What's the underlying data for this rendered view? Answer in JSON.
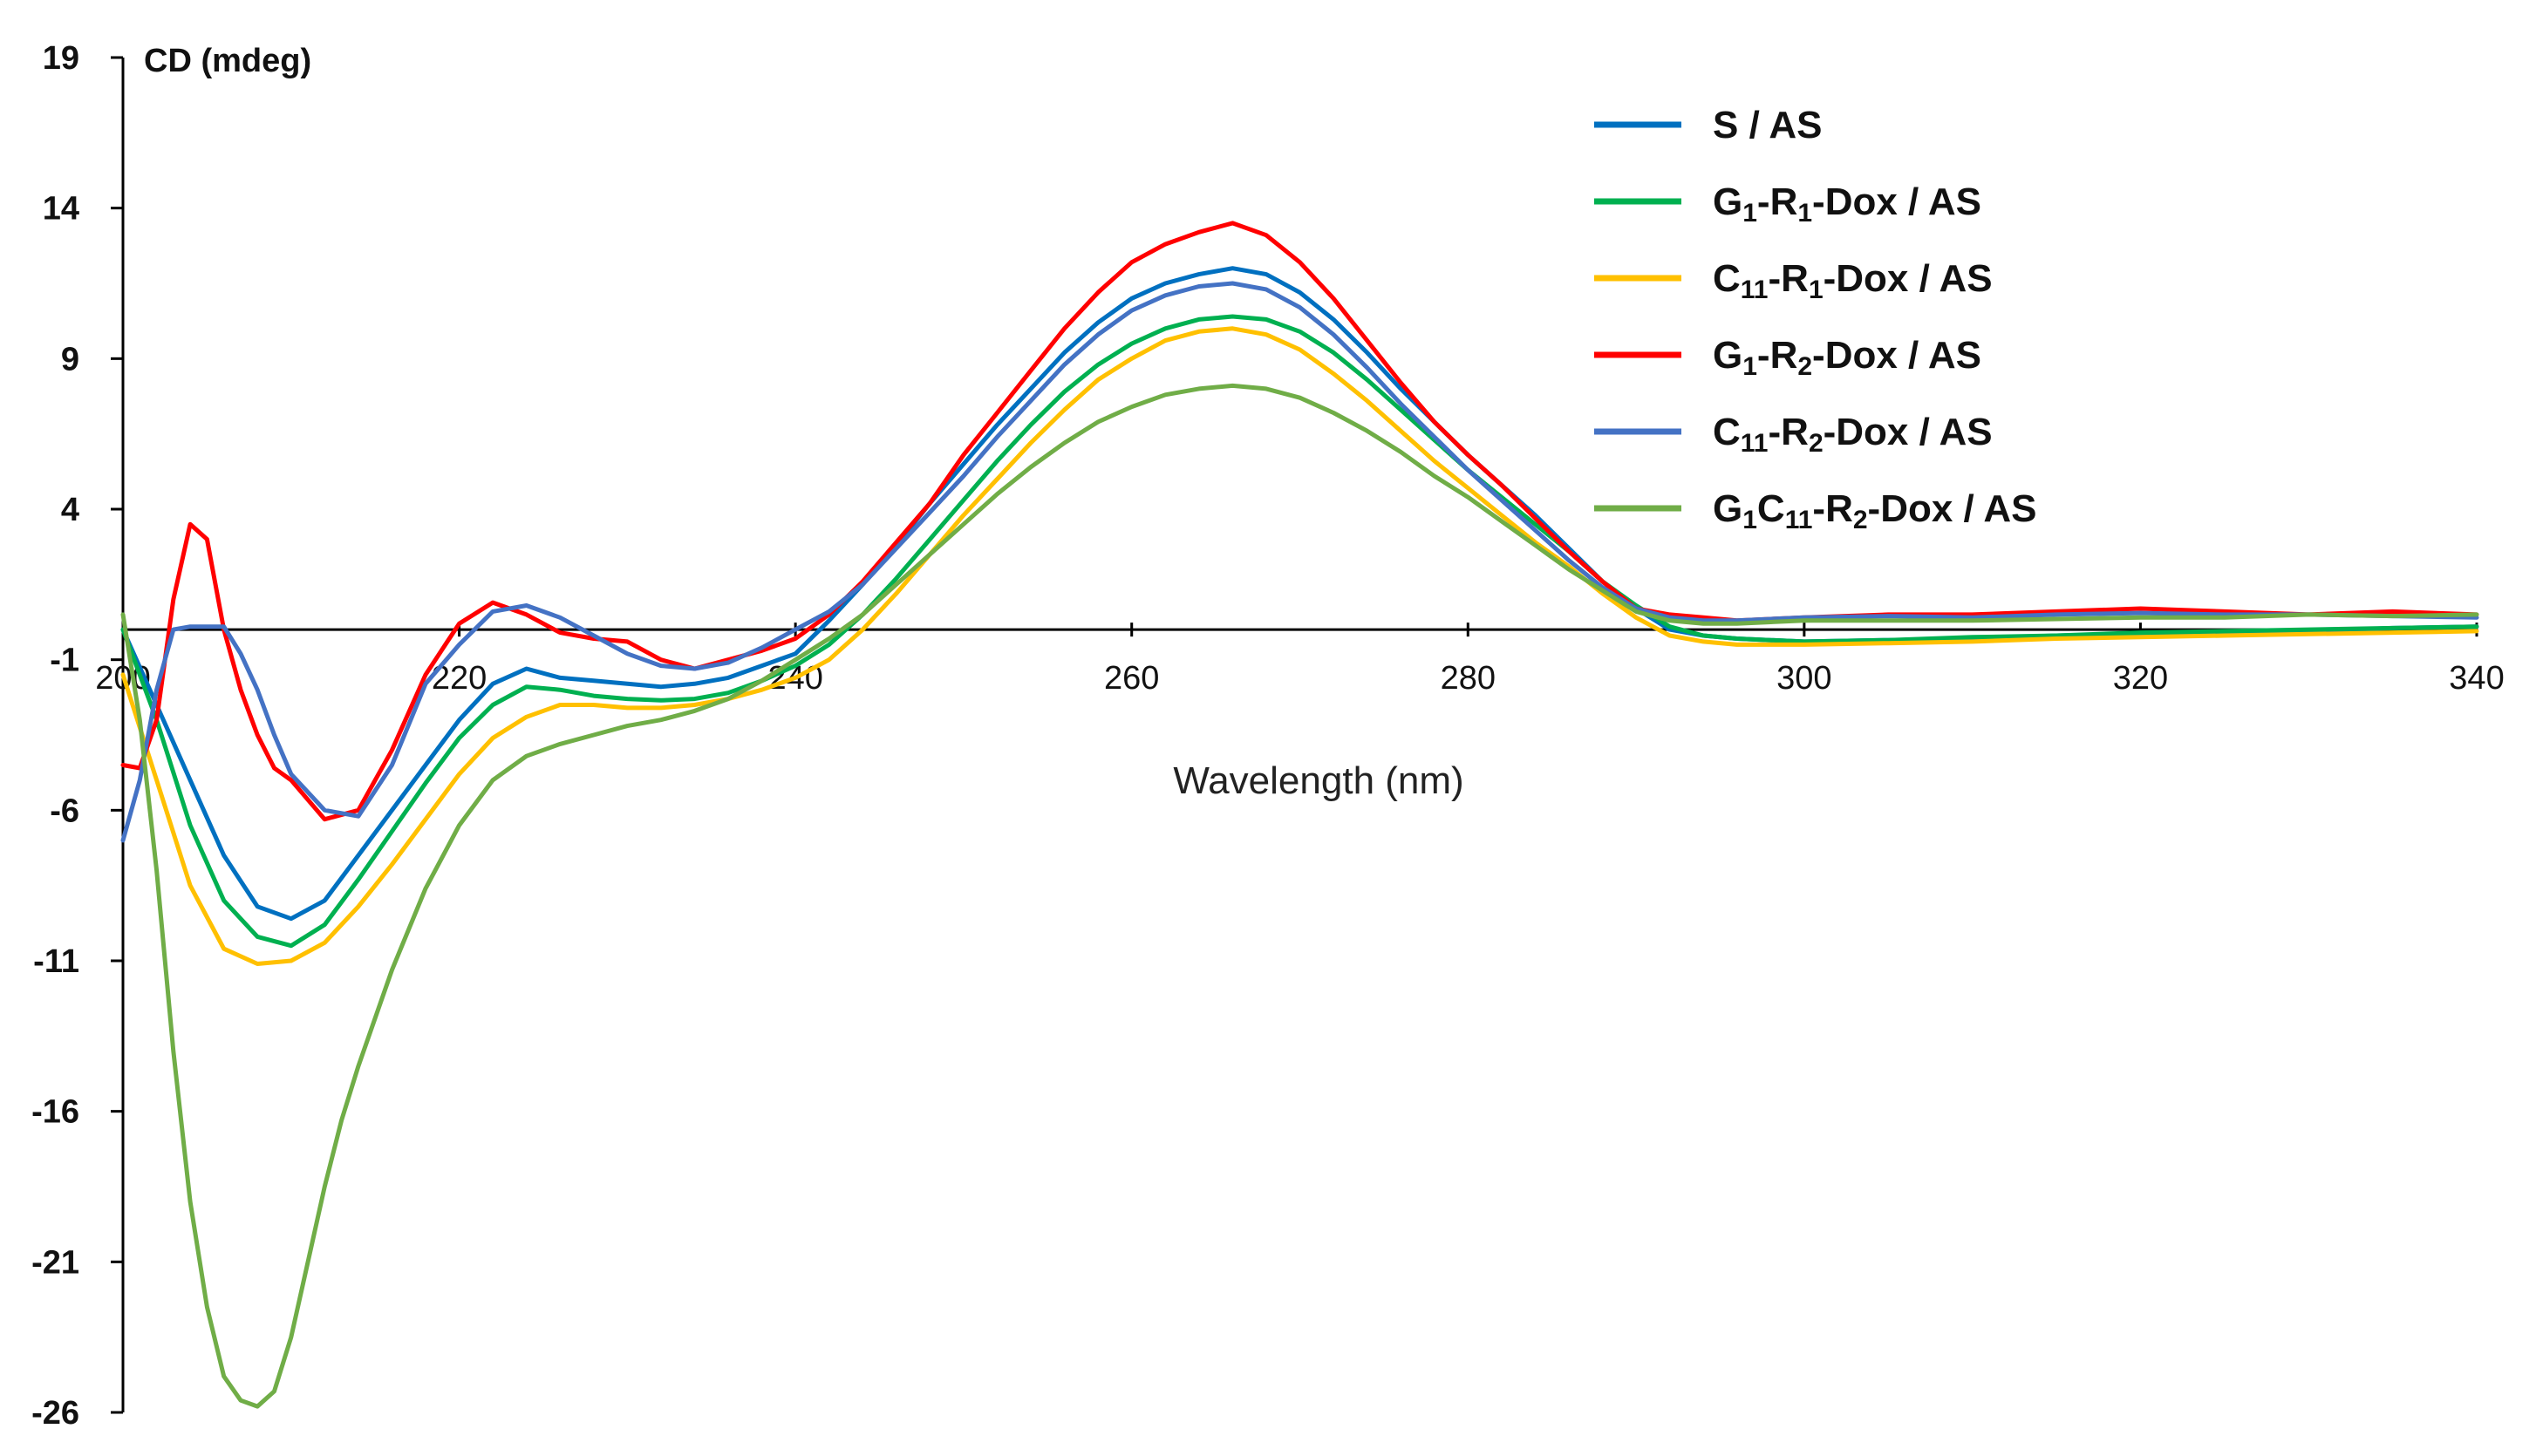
{
  "chart_data": {
    "type": "line",
    "title": "",
    "xlabel": "Wavelength (nm)",
    "ylabel": "CD (mdeg)",
    "xlim": [
      200,
      340
    ],
    "ylim": [
      -26,
      19
    ],
    "x_ticks": [
      200,
      220,
      240,
      260,
      280,
      300,
      320,
      340
    ],
    "y_ticks": [
      19,
      14,
      9,
      4,
      -1,
      -6,
      -11,
      -16,
      -21,
      -26
    ],
    "legend_position": "top-right",
    "series": [
      {
        "name": "S / AS",
        "legend_parts": [
          {
            "t": "S / AS"
          }
        ],
        "color": "#0070C0",
        "x": [
          200,
          202,
          204,
          206,
          208,
          210,
          212,
          214,
          216,
          218,
          220,
          222,
          224,
          226,
          228,
          230,
          232,
          234,
          236,
          238,
          240,
          242,
          244,
          246,
          248,
          250,
          252,
          254,
          256,
          258,
          260,
          262,
          264,
          266,
          268,
          270,
          272,
          274,
          276,
          278,
          280,
          282,
          284,
          286,
          288,
          290,
          292,
          294,
          296,
          298,
          300,
          305,
          310,
          315,
          320,
          325,
          330,
          335,
          340
        ],
        "y": [
          0,
          -2.5,
          -5,
          -7.5,
          -9.2,
          -9.6,
          -9,
          -7.5,
          -6,
          -4.5,
          -3,
          -1.8,
          -1.3,
          -1.6,
          -1.7,
          -1.8,
          -1.9,
          -1.8,
          -1.6,
          -1.2,
          -0.8,
          0.3,
          1.5,
          2.8,
          4.2,
          5.5,
          6.8,
          8,
          9.2,
          10.2,
          11,
          11.5,
          11.8,
          12,
          11.8,
          11.2,
          10.3,
          9.2,
          8,
          6.9,
          5.8,
          4.8,
          3.8,
          2.7,
          1.6,
          0.7,
          0,
          -0.2,
          -0.3,
          -0.35,
          -0.4,
          -0.35,
          -0.3,
          -0.2,
          -0.15,
          -0.1,
          -0.05,
          0.05,
          0.1
        ]
      },
      {
        "name": "G1-R1-Dox / AS",
        "legend_parts": [
          {
            "t": "G"
          },
          {
            "t": "1",
            "sub": true
          },
          {
            "t": "-R"
          },
          {
            "t": "1",
            "sub": true
          },
          {
            "t": "-Dox / AS"
          }
        ],
        "color": "#00B050",
        "x": [
          200,
          202,
          204,
          206,
          208,
          210,
          212,
          214,
          216,
          218,
          220,
          222,
          224,
          226,
          228,
          230,
          232,
          234,
          236,
          238,
          240,
          242,
          244,
          246,
          248,
          250,
          252,
          254,
          256,
          258,
          260,
          262,
          264,
          266,
          268,
          270,
          272,
          274,
          276,
          278,
          280,
          282,
          284,
          286,
          288,
          290,
          292,
          294,
          296,
          298,
          300,
          305,
          310,
          315,
          320,
          325,
          330,
          335,
          340
        ],
        "y": [
          0,
          -3,
          -6.5,
          -9,
          -10.2,
          -10.5,
          -9.8,
          -8.3,
          -6.7,
          -5.1,
          -3.6,
          -2.5,
          -1.9,
          -2,
          -2.2,
          -2.3,
          -2.35,
          -2.3,
          -2.1,
          -1.7,
          -1.2,
          -0.5,
          0.5,
          1.7,
          3,
          4.3,
          5.6,
          6.8,
          7.9,
          8.8,
          9.5,
          10,
          10.3,
          10.4,
          10.3,
          9.9,
          9.2,
          8.3,
          7.3,
          6.3,
          5.3,
          4.4,
          3.5,
          2.6,
          1.6,
          0.8,
          0.1,
          -0.2,
          -0.3,
          -0.35,
          -0.4,
          -0.35,
          -0.25,
          -0.2,
          -0.1,
          -0.05,
          0,
          0.05,
          0.1
        ]
      },
      {
        "name": "C11-R1-Dox / AS",
        "legend_parts": [
          {
            "t": "C"
          },
          {
            "t": "11",
            "sub": true
          },
          {
            "t": "-R"
          },
          {
            "t": "1",
            "sub": true
          },
          {
            "t": "-Dox / AS"
          }
        ],
        "color": "#FFC000",
        "x": [
          200,
          202,
          204,
          206,
          208,
          210,
          212,
          214,
          216,
          218,
          220,
          222,
          224,
          226,
          228,
          230,
          232,
          234,
          236,
          238,
          240,
          242,
          244,
          246,
          248,
          250,
          252,
          254,
          256,
          258,
          260,
          262,
          264,
          266,
          268,
          270,
          272,
          274,
          276,
          278,
          280,
          282,
          284,
          286,
          288,
          290,
          292,
          294,
          296,
          298,
          300,
          305,
          310,
          315,
          320,
          325,
          330,
          335,
          340
        ],
        "y": [
          -1.5,
          -5,
          -8.5,
          -10.6,
          -11.1,
          -11,
          -10.4,
          -9.2,
          -7.8,
          -6.3,
          -4.8,
          -3.6,
          -2.9,
          -2.5,
          -2.5,
          -2.6,
          -2.6,
          -2.5,
          -2.3,
          -2,
          -1.6,
          -1,
          0,
          1.2,
          2.5,
          3.8,
          5,
          6.2,
          7.3,
          8.3,
          9,
          9.6,
          9.9,
          10,
          9.8,
          9.3,
          8.5,
          7.6,
          6.6,
          5.6,
          4.7,
          3.8,
          2.9,
          2.1,
          1.2,
          0.4,
          -0.2,
          -0.4,
          -0.5,
          -0.5,
          -0.5,
          -0.45,
          -0.4,
          -0.3,
          -0.25,
          -0.2,
          -0.15,
          -0.1,
          -0.05
        ]
      },
      {
        "name": "G1-R2-Dox / AS",
        "legend_parts": [
          {
            "t": "G"
          },
          {
            "t": "1",
            "sub": true
          },
          {
            "t": "-R"
          },
          {
            "t": "2",
            "sub": true
          },
          {
            "t": "-Dox / AS"
          }
        ],
        "color": "#FF0000",
        "x": [
          200,
          201,
          202,
          203,
          204,
          205,
          206,
          207,
          208,
          209,
          210,
          212,
          214,
          216,
          218,
          220,
          222,
          224,
          226,
          228,
          230,
          232,
          234,
          236,
          238,
          240,
          242,
          244,
          246,
          248,
          250,
          252,
          254,
          256,
          258,
          260,
          262,
          264,
          266,
          268,
          270,
          272,
          274,
          276,
          278,
          280,
          282,
          284,
          286,
          288,
          290,
          292,
          294,
          296,
          298,
          300,
          305,
          310,
          315,
          320,
          325,
          330,
          335,
          340
        ],
        "y": [
          -4.5,
          -4.6,
          -3,
          1,
          3.5,
          3,
          0,
          -2,
          -3.5,
          -4.6,
          -5,
          -6.3,
          -6,
          -4,
          -1.5,
          0.2,
          0.9,
          0.5,
          -0.1,
          -0.3,
          -0.4,
          -1,
          -1.3,
          -1,
          -0.7,
          -0.3,
          0.5,
          1.6,
          2.9,
          4.2,
          5.8,
          7.2,
          8.6,
          10,
          11.2,
          12.2,
          12.8,
          13.2,
          13.5,
          13.1,
          12.2,
          11,
          9.6,
          8.2,
          6.9,
          5.8,
          4.8,
          3.7,
          2.6,
          1.6,
          0.7,
          0.5,
          0.4,
          0.3,
          0.35,
          0.4,
          0.5,
          0.5,
          0.6,
          0.7,
          0.6,
          0.5,
          0.6,
          0.5
        ]
      },
      {
        "name": "C11-R2-Dox / AS",
        "legend_parts": [
          {
            "t": "C"
          },
          {
            "t": "11",
            "sub": true
          },
          {
            "t": "-R"
          },
          {
            "t": "2",
            "sub": true
          },
          {
            "t": "-Dox / AS"
          }
        ],
        "color": "#4472C4",
        "x": [
          200,
          201,
          202,
          203,
          204,
          205,
          206,
          207,
          208,
          209,
          210,
          212,
          214,
          216,
          218,
          220,
          222,
          224,
          226,
          228,
          230,
          232,
          234,
          236,
          238,
          240,
          242,
          244,
          246,
          248,
          250,
          252,
          254,
          256,
          258,
          260,
          262,
          264,
          266,
          268,
          270,
          272,
          274,
          276,
          278,
          280,
          282,
          284,
          286,
          288,
          290,
          292,
          294,
          296,
          298,
          300,
          305,
          310,
          315,
          320,
          325,
          330,
          335,
          340
        ],
        "y": [
          -7,
          -5,
          -2,
          0,
          0.1,
          0.1,
          0.1,
          -0.8,
          -2,
          -3.5,
          -4.8,
          -6,
          -6.2,
          -4.5,
          -1.8,
          -0.5,
          0.6,
          0.8,
          0.4,
          -0.2,
          -0.8,
          -1.2,
          -1.3,
          -1.1,
          -0.6,
          0,
          0.6,
          1.5,
          2.7,
          3.9,
          5.1,
          6.4,
          7.6,
          8.8,
          9.8,
          10.6,
          11.1,
          11.4,
          11.5,
          11.3,
          10.7,
          9.8,
          8.7,
          7.5,
          6.4,
          5.3,
          4.3,
          3.3,
          2.3,
          1.4,
          0.7,
          0.4,
          0.3,
          0.3,
          0.35,
          0.4,
          0.45,
          0.4,
          0.5,
          0.55,
          0.5,
          0.5,
          0.45,
          0.4
        ]
      },
      {
        "name": "G1C11-R2-Dox / AS",
        "legend_parts": [
          {
            "t": "G"
          },
          {
            "t": "1",
            "sub": true
          },
          {
            "t": "C"
          },
          {
            "t": "11",
            "sub": true
          },
          {
            "t": "-R"
          },
          {
            "t": "2",
            "sub": true
          },
          {
            "t": "-Dox / AS"
          }
        ],
        "color": "#70AD47",
        "x": [
          200,
          201,
          202,
          203,
          204,
          205,
          206,
          207,
          208,
          209,
          210,
          211,
          212,
          213,
          214,
          216,
          218,
          220,
          222,
          224,
          226,
          228,
          230,
          232,
          234,
          236,
          238,
          240,
          242,
          244,
          246,
          248,
          250,
          252,
          254,
          256,
          258,
          260,
          262,
          264,
          266,
          268,
          270,
          272,
          274,
          276,
          278,
          280,
          282,
          284,
          286,
          288,
          290,
          292,
          294,
          296,
          298,
          300,
          305,
          310,
          315,
          320,
          325,
          330,
          335,
          340
        ],
        "y": [
          0.5,
          -3,
          -8,
          -14,
          -19,
          -22.5,
          -24.8,
          -25.6,
          -25.8,
          -25.3,
          -23.5,
          -21,
          -18.5,
          -16.3,
          -14.5,
          -11.3,
          -8.6,
          -6.5,
          -5,
          -4.2,
          -3.8,
          -3.5,
          -3.2,
          -3,
          -2.7,
          -2.3,
          -1.7,
          -1,
          -0.3,
          0.5,
          1.5,
          2.5,
          3.5,
          4.5,
          5.4,
          6.2,
          6.9,
          7.4,
          7.8,
          8,
          8.1,
          8,
          7.7,
          7.2,
          6.6,
          5.9,
          5.1,
          4.4,
          3.6,
          2.8,
          2,
          1.3,
          0.6,
          0.3,
          0.2,
          0.2,
          0.25,
          0.3,
          0.3,
          0.3,
          0.35,
          0.4,
          0.4,
          0.5,
          0.45,
          0.5
        ]
      }
    ]
  }
}
